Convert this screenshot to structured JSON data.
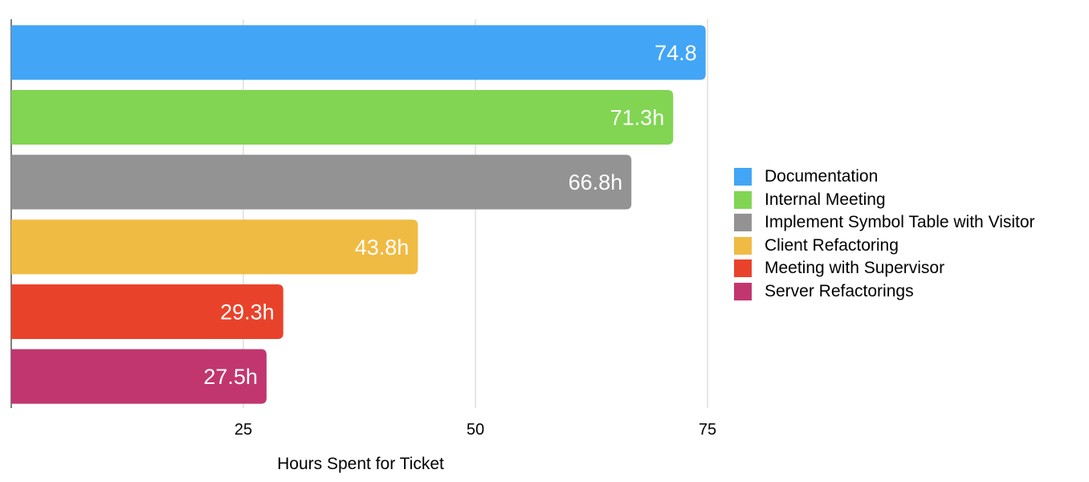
{
  "chart_data": {
    "type": "bar",
    "orientation": "horizontal",
    "categories": [
      "Documentation",
      "Internal Meeting",
      "Implement Symbol Table with Visitor",
      "Client Refactoring",
      "Meeting with Supervisor",
      "Server Refactorings"
    ],
    "values": [
      74.8,
      71.3,
      66.8,
      43.8,
      29.3,
      27.5
    ],
    "data_labels": [
      "74.8",
      "71.3h",
      "66.8h",
      "43.8h",
      "29.3h",
      "27.5h"
    ],
    "colors": [
      "#42a5f5",
      "#81d553",
      "#939393",
      "#f0bb43",
      "#e9422b",
      "#c1366f"
    ],
    "xlabel": "Hours Spent for Ticket",
    "ylabel": "",
    "xlim": [
      0,
      75
    ],
    "xticks": [
      25,
      50,
      75
    ],
    "xtick_labels": [
      "25",
      "50",
      "75"
    ],
    "grid": true,
    "legend": "right"
  }
}
